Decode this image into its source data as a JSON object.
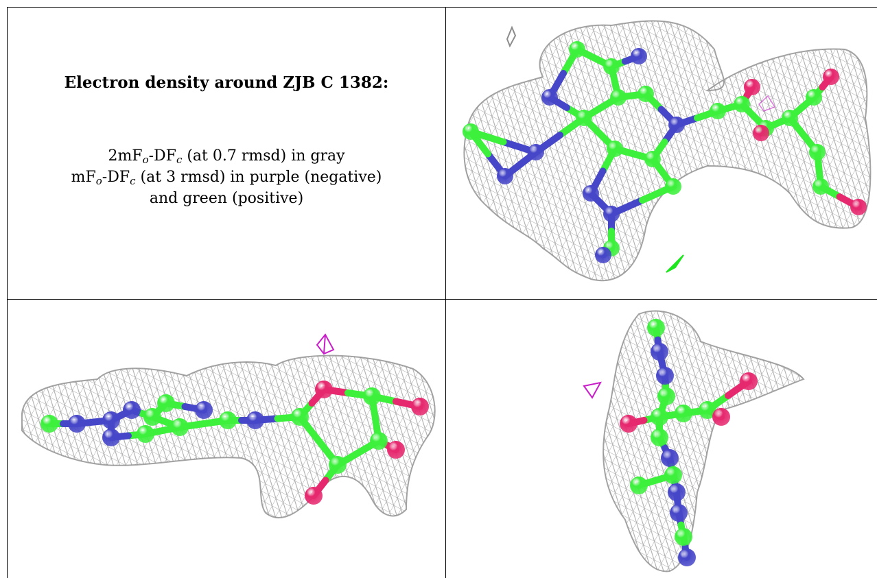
{
  "caption": {
    "title": "Electron density around ZJB C 1382:",
    "line1": {
      "prefix": "2mF",
      "sub1": "o",
      "mid": "-DF",
      "sub2": "c",
      "suffix": " (at 0.7 rmsd) in gray"
    },
    "line2": {
      "prefix": "mF",
      "sub1": "o",
      "mid": "-DF",
      "sub2": "c",
      "suffix": " (at 3 rmsd) in purple (negative)"
    },
    "line3": "and green (positive)"
  },
  "colors": {
    "carbon": "#3cf03c",
    "nitrogen": "#4646c8",
    "oxygen": "#e6286e",
    "mesh": "#8c8c8c",
    "negative_density": "#c81ec8",
    "positive_density": "#1ee61e"
  },
  "views": [
    {
      "id": "top-view"
    },
    {
      "id": "side-view"
    },
    {
      "id": "edge-view"
    }
  ]
}
